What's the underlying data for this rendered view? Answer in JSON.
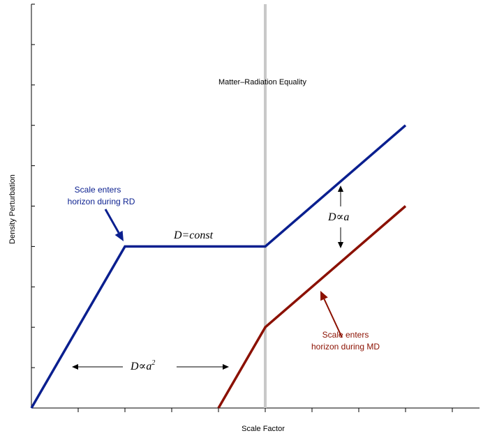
{
  "chart_data": {
    "type": "line",
    "xlabel": "Scale Factor",
    "ylabel": "Density Perturbation",
    "xlim": [
      0,
      10
    ],
    "ylim": [
      0,
      10
    ],
    "x_ticks": [
      0,
      1,
      2,
      3,
      4,
      5,
      6,
      7,
      8,
      9,
      10
    ],
    "y_ticks": [
      0,
      1,
      2,
      3,
      4,
      5,
      6,
      7,
      8,
      9,
      10
    ],
    "vertical_line": {
      "x": 5,
      "label": "Matter–Radiation Equality",
      "color": "#c8c8c8"
    },
    "series": [
      {
        "color": "#0a1f8f",
        "x": [
          0,
          2,
          5,
          8
        ],
        "y": [
          0,
          4,
          4,
          7
        ]
      },
      {
        "color": "#8b1000",
        "x": [
          4,
          5,
          8
        ],
        "y": [
          0,
          2,
          5
        ]
      }
    ],
    "annotations": {
      "rd_note": {
        "lines": [
          "Scale enters",
          "horizon during RD"
        ],
        "color": "#0a1f8f"
      },
      "md_note": {
        "lines": [
          "Scale enters",
          "horizon during MD"
        ],
        "color": "#8b1000"
      },
      "const_label": "D=const",
      "prop_a_label": {
        "base": "D∝a"
      },
      "prop_a2_label": {
        "base": "D∝a",
        "sup": "2"
      }
    }
  }
}
